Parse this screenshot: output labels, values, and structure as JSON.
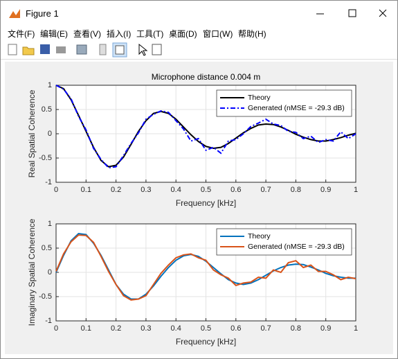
{
  "window": {
    "title": "Figure 1",
    "menu": [
      "文件(F)",
      "编辑(E)",
      "查看(V)",
      "插入(I)",
      "工具(T)",
      "桌面(D)",
      "窗口(W)",
      "帮助(H)"
    ]
  },
  "chart_data": [
    {
      "type": "line",
      "title": "Microphone distance 0.004 m",
      "xlabel": "Frequency [kHz]",
      "ylabel": "Real Spatial Coherence",
      "x": [
        0,
        0.025,
        0.05,
        0.075,
        0.1,
        0.125,
        0.15,
        0.175,
        0.2,
        0.225,
        0.25,
        0.275,
        0.3,
        0.325,
        0.35,
        0.375,
        0.4,
        0.425,
        0.45,
        0.475,
        0.5,
        0.525,
        0.55,
        0.575,
        0.6,
        0.625,
        0.65,
        0.675,
        0.7,
        0.725,
        0.75,
        0.775,
        0.8,
        0.825,
        0.85,
        0.875,
        0.9,
        0.925,
        0.95,
        0.975,
        1
      ],
      "series": [
        {
          "name": "Theory",
          "color": "#000000",
          "linestyle": "solid",
          "values": [
            1.0,
            0.93,
            0.7,
            0.38,
            0.05,
            -0.28,
            -0.55,
            -0.68,
            -0.65,
            -0.48,
            -0.22,
            0.05,
            0.27,
            0.42,
            0.46,
            0.42,
            0.3,
            0.14,
            -0.02,
            -0.16,
            -0.26,
            -0.3,
            -0.28,
            -0.2,
            -0.09,
            0.02,
            0.11,
            0.18,
            0.2,
            0.19,
            0.14,
            0.07,
            -0.01,
            -0.07,
            -0.12,
            -0.15,
            -0.15,
            -0.12,
            -0.08,
            -0.03,
            0.01
          ]
        },
        {
          "name": "Generated (nMSE = -29.3 dB)",
          "color": "#0000ff",
          "linestyle": "dashdot",
          "values": [
            1.0,
            0.92,
            0.72,
            0.36,
            0.08,
            -0.3,
            -0.53,
            -0.7,
            -0.68,
            -0.45,
            -0.2,
            0.02,
            0.3,
            0.4,
            0.47,
            0.44,
            0.27,
            0.1,
            -0.15,
            -0.1,
            -0.34,
            -0.28,
            -0.4,
            -0.15,
            -0.12,
            0.0,
            0.15,
            0.22,
            0.3,
            0.2,
            0.17,
            0.05,
            0.03,
            -0.1,
            -0.05,
            -0.18,
            -0.12,
            -0.15,
            0.04,
            -0.1,
            0.0
          ]
        }
      ],
      "xlim": [
        0,
        1
      ],
      "ylim": [
        -1,
        1
      ],
      "xticks": [
        0,
        0.1,
        0.2,
        0.3,
        0.4,
        0.5,
        0.6,
        0.7,
        0.8,
        0.9,
        1
      ],
      "yticks": [
        -1,
        -0.5,
        0,
        0.5,
        1
      ],
      "grid": true,
      "legend": "upper right"
    },
    {
      "type": "line",
      "xlabel": "Frequency [kHz]",
      "ylabel": "Imaginary Spatial Coherence",
      "x": [
        0,
        0.025,
        0.05,
        0.075,
        0.1,
        0.125,
        0.15,
        0.175,
        0.2,
        0.225,
        0.25,
        0.275,
        0.3,
        0.325,
        0.35,
        0.375,
        0.4,
        0.425,
        0.45,
        0.475,
        0.5,
        0.525,
        0.55,
        0.575,
        0.6,
        0.625,
        0.65,
        0.675,
        0.7,
        0.725,
        0.75,
        0.775,
        0.8,
        0.825,
        0.85,
        0.875,
        0.9,
        0.925,
        0.95,
        0.975,
        1
      ],
      "series": [
        {
          "name": "Theory",
          "color": "#0072bd",
          "linestyle": "solid",
          "values": [
            0.0,
            0.35,
            0.65,
            0.8,
            0.78,
            0.6,
            0.35,
            0.05,
            -0.25,
            -0.45,
            -0.55,
            -0.55,
            -0.45,
            -0.28,
            -0.08,
            0.1,
            0.25,
            0.34,
            0.37,
            0.33,
            0.23,
            0.1,
            -0.03,
            -0.15,
            -0.22,
            -0.25,
            -0.22,
            -0.15,
            -0.06,
            0.03,
            0.1,
            0.15,
            0.17,
            0.16,
            0.11,
            0.05,
            -0.02,
            -0.07,
            -0.1,
            -0.12,
            -0.12
          ]
        },
        {
          "name": "Generated (nMSE = -29.3 dB)",
          "color": "#d95319",
          "linestyle": "solid",
          "values": [
            0.02,
            0.38,
            0.63,
            0.77,
            0.76,
            0.62,
            0.33,
            0.02,
            -0.25,
            -0.48,
            -0.57,
            -0.55,
            -0.48,
            -0.25,
            -0.02,
            0.15,
            0.3,
            0.36,
            0.38,
            0.3,
            0.25,
            0.05,
            -0.05,
            -0.12,
            -0.27,
            -0.22,
            -0.2,
            -0.1,
            -0.12,
            0.05,
            0.0,
            0.2,
            0.24,
            0.1,
            0.15,
            0.02,
            0.02,
            -0.05,
            -0.15,
            -0.1,
            -0.13
          ]
        }
      ],
      "xlim": [
        0,
        1
      ],
      "ylim": [
        -1,
        1
      ],
      "xticks": [
        0,
        0.1,
        0.2,
        0.3,
        0.4,
        0.5,
        0.6,
        0.7,
        0.8,
        0.9,
        1
      ],
      "yticks": [
        -1,
        -0.5,
        0,
        0.5,
        1
      ],
      "grid": true,
      "legend": "upper right"
    }
  ]
}
